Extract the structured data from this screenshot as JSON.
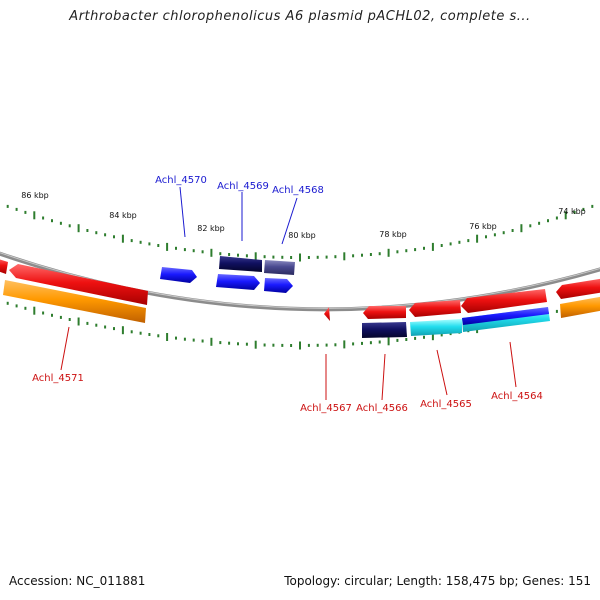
{
  "title": "Arthrobacter chlorophenolicus A6 plasmid pACHL02, complete s...",
  "footer": {
    "accession_label": "Accession:",
    "accession": "NC_011881",
    "topology_label": "Topology:",
    "topology": "circular",
    "length_label": "Length:",
    "length": "158,475 bp",
    "genes_label": "Genes:",
    "genes": "151"
  },
  "ticks": [
    {
      "label": "86 kbp"
    },
    {
      "label": "84 kbp"
    },
    {
      "label": "82 kbp"
    },
    {
      "label": "80 kbp"
    },
    {
      "label": "78 kbp"
    },
    {
      "label": "76 kbp"
    },
    {
      "label": "74 kbp"
    }
  ],
  "colors": {
    "backbone": "#8c8c8c",
    "tick": "#2e7d2e",
    "forward_label": "#1a1ad0",
    "reverse_label": "#cc1111",
    "red": "#ee1111",
    "orange": "#ff9900",
    "blue": "#1a1aff",
    "navy": "#101060",
    "slate": "#4a4a90",
    "cyan": "#22ddee"
  },
  "gene_labels": [
    {
      "name": "Achl_4570",
      "strand": "forward"
    },
    {
      "name": "Achl_4569",
      "strand": "forward"
    },
    {
      "name": "Achl_4568",
      "strand": "forward"
    },
    {
      "name": "Achl_4571",
      "strand": "reverse"
    },
    {
      "name": "Achl_4567",
      "strand": "reverse"
    },
    {
      "name": "Achl_4566",
      "strand": "reverse"
    },
    {
      "name": "Achl_4565",
      "strand": "reverse"
    },
    {
      "name": "Achl_4564",
      "strand": "reverse"
    }
  ]
}
